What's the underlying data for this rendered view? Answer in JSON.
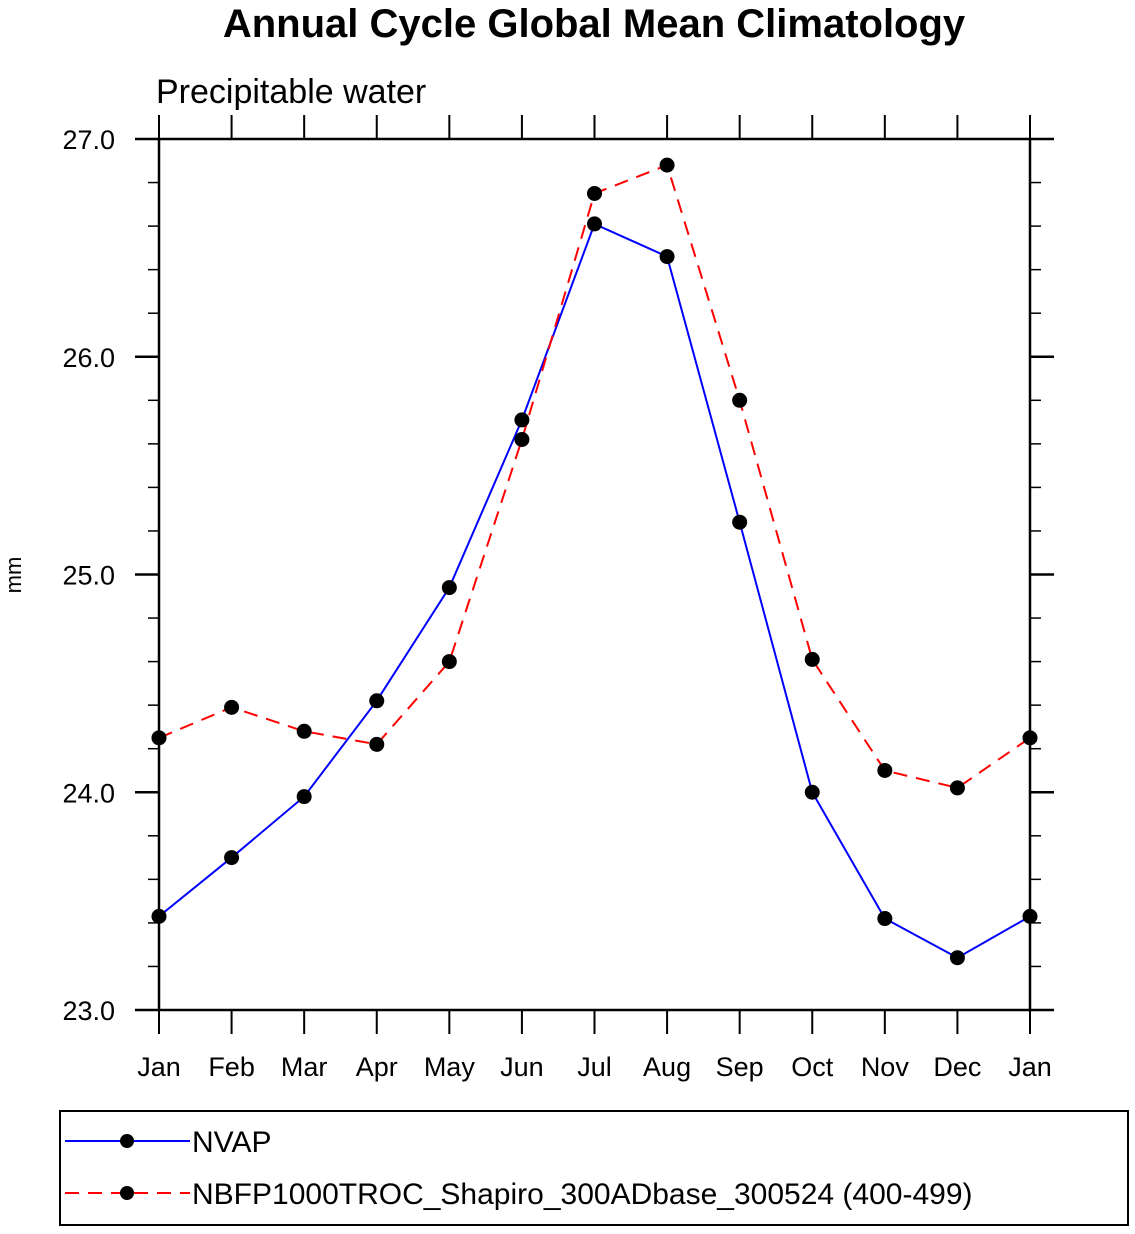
{
  "chart_data": {
    "type": "line",
    "title": "Annual Cycle Global Mean Climatology",
    "subtitle": "Precipitable water",
    "xlabel": "",
    "ylabel": "mm",
    "categories": [
      "Jan",
      "Feb",
      "Mar",
      "Apr",
      "May",
      "Jun",
      "Jul",
      "Aug",
      "Sep",
      "Oct",
      "Nov",
      "Dec",
      "Jan"
    ],
    "ylim": [
      23.0,
      27.0
    ],
    "yticks": [
      23.0,
      24.0,
      25.0,
      26.0,
      27.0
    ],
    "ytick_labels": [
      "23.0",
      "24.0",
      "25.0",
      "26.0",
      "27.0"
    ],
    "y_minor_step": 0.2,
    "grid": false,
    "legend_position": "bottom",
    "series": [
      {
        "name": "NVAP",
        "color": "#0000ff",
        "dash": "solid",
        "marker": "filled-circle",
        "values": [
          23.43,
          23.7,
          23.98,
          24.42,
          24.94,
          25.71,
          26.61,
          26.46,
          25.24,
          24.0,
          23.42,
          23.24,
          23.43
        ]
      },
      {
        "name": "NBFP1000TROC_Shapiro_300ADbase_300524 (400-499)",
        "color": "#ff0000",
        "dash": "dashed",
        "marker": "filled-circle",
        "values": [
          24.25,
          24.39,
          24.28,
          24.22,
          24.6,
          25.62,
          26.75,
          26.88,
          25.8,
          24.61,
          24.1,
          24.02,
          24.25
        ]
      }
    ]
  }
}
